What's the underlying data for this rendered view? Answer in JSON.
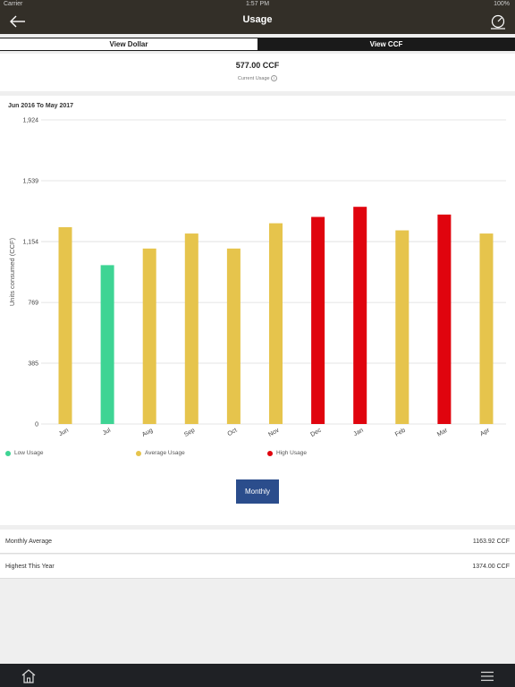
{
  "status_bar": {
    "carrier": "Carrier",
    "time": "1:57 PM",
    "battery": "100%"
  },
  "header": {
    "title": "Usage",
    "back_icon": "arrow-left-icon",
    "right_icon": "gauge-icon"
  },
  "toggle": {
    "dollar_label": "View Dollar",
    "ccf_label": "View CCF",
    "active": "ccf"
  },
  "summary": {
    "value": "577.00 CCF",
    "label": "Current Usage"
  },
  "chart_data": {
    "type": "bar",
    "title": "Jun 2016 To May 2017",
    "ylabel": "Units consumed (CCF)",
    "xlabel": "",
    "ylim": [
      0,
      1924
    ],
    "yticks": [
      0,
      385,
      769,
      1154,
      1539,
      1924
    ],
    "ytick_labels": [
      "0",
      "385",
      "769",
      "1,154",
      "1,539",
      "1,924"
    ],
    "categories": [
      "Jun",
      "Jul",
      "Aug",
      "Sep",
      "Oct",
      "Nov",
      "Dec",
      "Jan",
      "Feb",
      "Mar",
      "Apr"
    ],
    "values": [
      1245,
      1005,
      1110,
      1205,
      1110,
      1270,
      1310,
      1374,
      1225,
      1325,
      1205
    ],
    "levels": [
      "average",
      "low",
      "average",
      "average",
      "average",
      "average",
      "high",
      "high",
      "average",
      "high",
      "average"
    ],
    "colors": {
      "low": "#3ed494",
      "average": "#e6c44c",
      "high": "#e0040e"
    },
    "grid": true
  },
  "legend": [
    {
      "key": "low",
      "label": "Low Usage",
      "color": "#3ed494"
    },
    {
      "key": "average",
      "label": "Average Usage",
      "color": "#e6c44c"
    },
    {
      "key": "high",
      "label": "High Usage",
      "color": "#e0040e"
    }
  ],
  "monthly_button": "Monthly",
  "stats": [
    {
      "label": "Monthly Average",
      "value": "1163.92 CCF"
    },
    {
      "label": "Highest This Year",
      "value": "1374.00 CCF"
    }
  ],
  "bottom_bar": {
    "home_icon": "home-icon",
    "menu_icon": "hamburger-menu-icon"
  }
}
